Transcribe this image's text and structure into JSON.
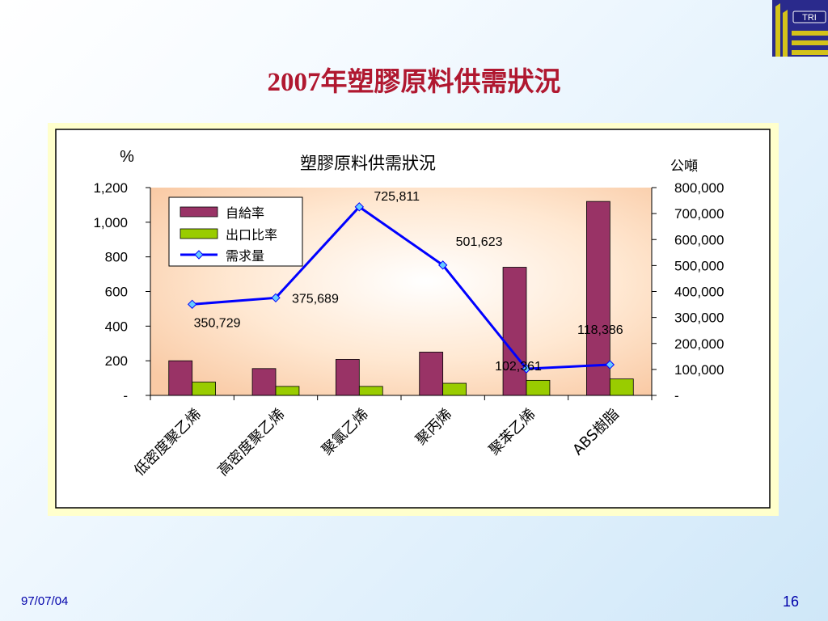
{
  "slide": {
    "title": "2007年塑膠原料供需狀況",
    "date": "97/07/04",
    "page": "16",
    "logo_text": "TRI"
  },
  "colors": {
    "title": "#b01830",
    "bar_self_sufficiency": "#993366",
    "bar_export_ratio": "#99cc00",
    "line_demand": "#0000ff",
    "marker": "#66ccff",
    "footer_text": "#0000aa",
    "frame_background": "#ffffcc"
  },
  "chart_data": {
    "type": "bar",
    "title": "塑膠原料供需狀況",
    "left_axis_unit": "%",
    "right_axis_unit": "公噸",
    "categories": [
      "低密度聚乙烯",
      "高密度聚乙烯",
      "聚氯乙烯",
      "聚丙烯",
      "聚苯乙烯",
      "ABS樹脂"
    ],
    "y_left": {
      "range": [
        0,
        1200
      ],
      "ticks": [
        0,
        200,
        400,
        600,
        800,
        1000,
        1200
      ],
      "tick_labels": [
        "-",
        "200",
        "400",
        "600",
        "800",
        "1,000",
        "1,200"
      ]
    },
    "y_right": {
      "range": [
        0,
        800000
      ],
      "ticks": [
        0,
        100000,
        200000,
        300000,
        400000,
        500000,
        600000,
        700000,
        800000
      ],
      "tick_labels": [
        "-",
        "100,000",
        "200,000",
        "300,000",
        "400,000",
        "500,000",
        "600,000",
        "700,000",
        "800,000"
      ]
    },
    "series": [
      {
        "name": "自給率",
        "kind": "bar",
        "axis": "left",
        "color": "#993366",
        "values": [
          200,
          155,
          208,
          250,
          740,
          1120
        ]
      },
      {
        "name": "出口比率",
        "kind": "bar",
        "axis": "left",
        "color": "#99cc00",
        "values": [
          77,
          52,
          52,
          70,
          87,
          95
        ]
      },
      {
        "name": "需求量",
        "kind": "line",
        "axis": "right",
        "color": "#0000ff",
        "values": [
          350729,
          375689,
          725811,
          501623,
          102361,
          118386
        ],
        "labels": [
          "350,729",
          "375,689",
          "725,811",
          "501,623",
          "102,361",
          "118,386"
        ]
      }
    ],
    "legend": {
      "placement": "top-left inside plot"
    },
    "grid": false
  }
}
